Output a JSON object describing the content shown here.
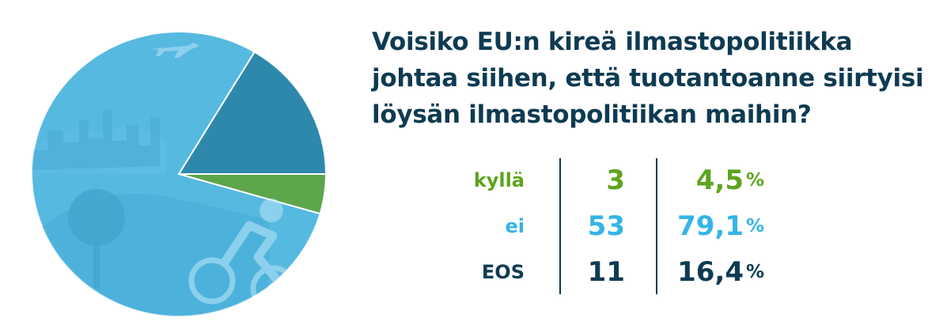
{
  "title": "Voisiko EU:n kireä ilmastopolitiikka johtaa siihen, että tuotantoanne siirtyisi löysän ilmastopolitiikan maihin?",
  "rows": [
    {
      "label": "kyllä",
      "count": "3",
      "pct": "4,5",
      "unit": "%",
      "color": "#5ea41e"
    },
    {
      "label": "ei",
      "count": "53",
      "pct": "79,1",
      "unit": "%",
      "color": "#35b4e6"
    },
    {
      "label": "EOS",
      "count": "11",
      "pct": "16,4",
      "unit": "%",
      "color": "#0e3b52"
    }
  ],
  "chart_data": {
    "type": "pie",
    "title": "Voisiko EU:n kireä ilmastopolitiikka johtaa siihen, että tuotantoanne siirtyisi löysän ilmastopolitiikan maihin?",
    "labels": [
      "kyllä",
      "ei",
      "EOS"
    ],
    "values": [
      4.5,
      79.1,
      16.4
    ],
    "counts": [
      3,
      53,
      11
    ],
    "colors": [
      "#5ea64c",
      "#56b9e0",
      "#2e88ac"
    ],
    "legend": "right-side table"
  }
}
